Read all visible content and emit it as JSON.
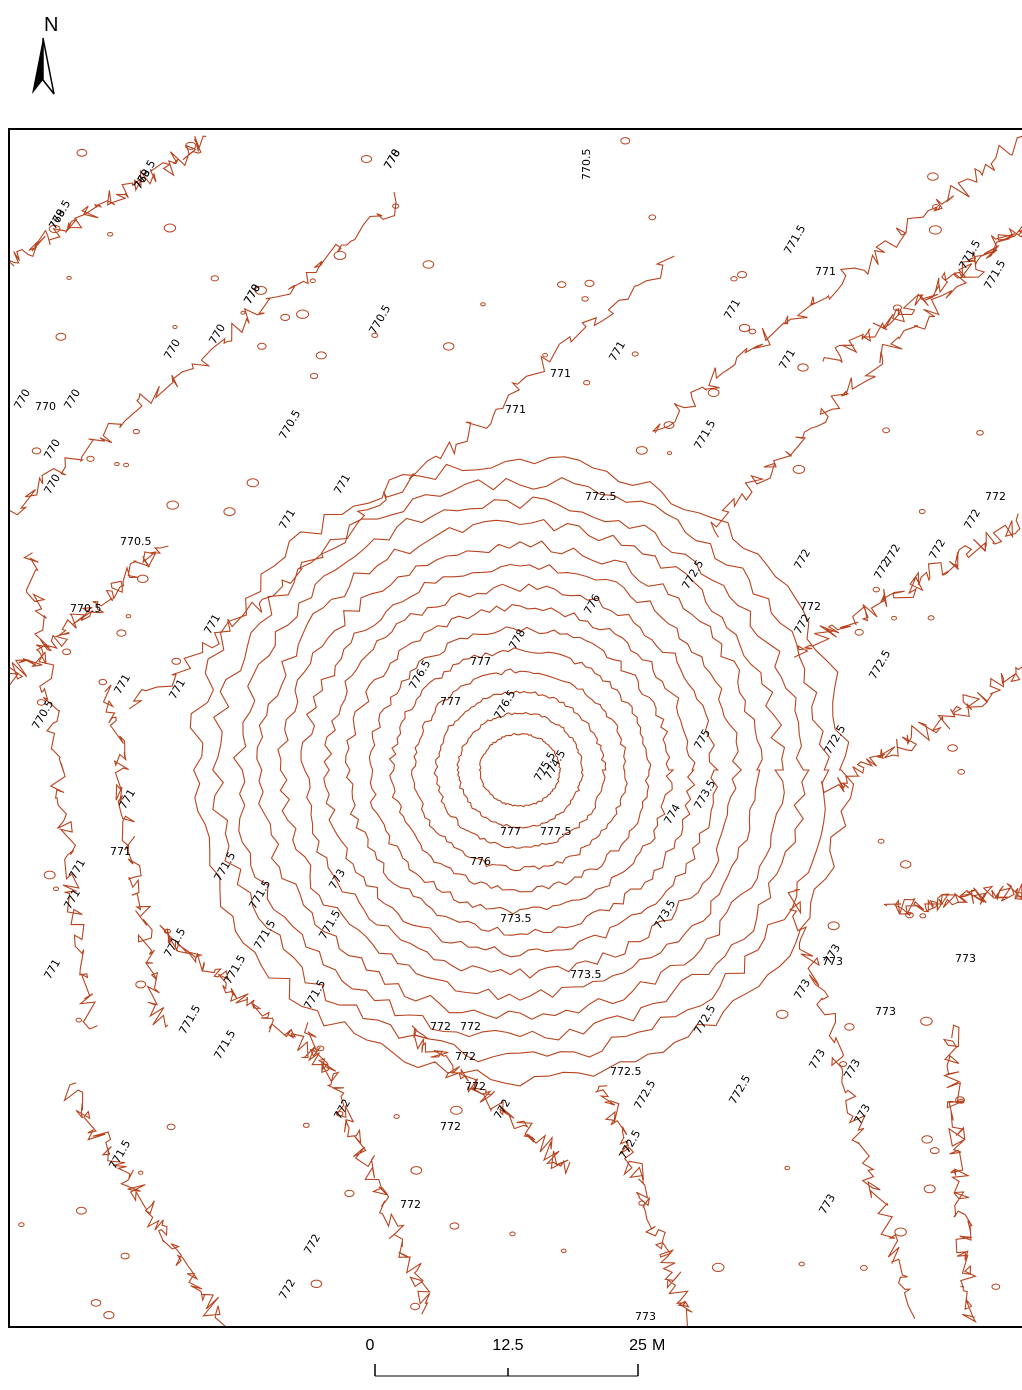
{
  "north_arrow": {
    "letter": "N",
    "icon": "north-arrow-icon"
  },
  "contour_color": "#b8431e",
  "contour_labels": [
    "769.5",
    "769.5",
    "770",
    "770",
    "770",
    "770",
    "770",
    "770",
    "770",
    "770",
    "770",
    "770.5",
    "770.5",
    "770.5",
    "770.5",
    "770.5",
    "770.5",
    "771",
    "771",
    "771",
    "771",
    "771",
    "771",
    "771",
    "771",
    "771",
    "771",
    "771",
    "771",
    "771",
    "771",
    "771",
    "771",
    "771.5",
    "771.5",
    "771.5",
    "771.5",
    "771.5",
    "771.5",
    "771.5",
    "771.5",
    "771.5",
    "771.5",
    "771.5",
    "771.5",
    "771.5",
    "771.5",
    "772",
    "772",
    "772",
    "772",
    "772",
    "772",
    "772",
    "772",
    "772",
    "772",
    "772",
    "772",
    "772",
    "772",
    "772",
    "772",
    "772",
    "772",
    "772.5",
    "772.5",
    "772.5",
    "772.5",
    "772.5",
    "772.5",
    "772.5",
    "772.5",
    "772.5",
    "773",
    "773",
    "773",
    "773",
    "773",
    "773",
    "773",
    "773",
    "773",
    "773",
    "773",
    "773.5",
    "773.5",
    "773.5",
    "773.5",
    "774",
    "774.5",
    "775",
    "775.5",
    "776",
    "776",
    "776.5",
    "776.5",
    "777",
    "777",
    "777",
    "777.5",
    "778",
    "778",
    "778",
    "778",
    "778"
  ],
  "label_order_note": "",
  "scale_bar": {
    "ticks": [
      "0",
      "12.5",
      "25"
    ],
    "unit": "M"
  }
}
